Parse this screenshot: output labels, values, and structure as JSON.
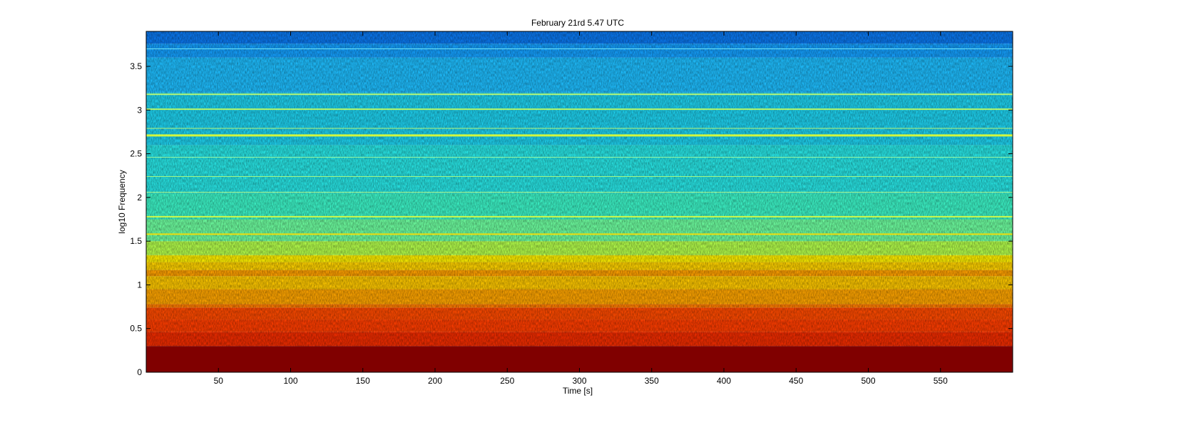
{
  "chart_data": {
    "type": "heatmap",
    "title": "February 21rd 5.47 UTC",
    "xlabel": "Time [s]",
    "ylabel": "log10 Frequency",
    "xlim": [
      0,
      600
    ],
    "ylim": [
      0,
      3.9
    ],
    "x_ticks": [
      {
        "value": 50,
        "label": "50"
      },
      {
        "value": 100,
        "label": "100"
      },
      {
        "value": 150,
        "label": "150"
      },
      {
        "value": 200,
        "label": "200"
      },
      {
        "value": 250,
        "label": "250"
      },
      {
        "value": 300,
        "label": "300"
      },
      {
        "value": 350,
        "label": "350"
      },
      {
        "value": 400,
        "label": "400"
      },
      {
        "value": 450,
        "label": "450"
      },
      {
        "value": 500,
        "label": "500"
      },
      {
        "value": 550,
        "label": "550"
      }
    ],
    "y_ticks": [
      {
        "value": 0,
        "label": "0"
      },
      {
        "value": 0.5,
        "label": "0.5"
      },
      {
        "value": 1,
        "label": "1"
      },
      {
        "value": 1.5,
        "label": "1.5"
      },
      {
        "value": 2,
        "label": "2"
      },
      {
        "value": 2.5,
        "label": "2.5"
      },
      {
        "value": 3,
        "label": "3"
      },
      {
        "value": 3.5,
        "label": "3.5"
      }
    ],
    "colormap": "jet",
    "grid": false,
    "bands": [
      {
        "y0": 0.0,
        "y1": 0.3,
        "color": "#800000"
      },
      {
        "y0": 0.3,
        "y1": 0.46,
        "color": "#f02c00"
      },
      {
        "y0": 0.46,
        "y1": 0.6,
        "color": "#ff3d00"
      },
      {
        "y0": 0.6,
        "y1": 0.74,
        "color": "#ff4a00"
      },
      {
        "y0": 0.74,
        "y1": 0.78,
        "color": "#ff7d00"
      },
      {
        "y0": 0.78,
        "y1": 0.95,
        "color": "#ffa500"
      },
      {
        "y0": 0.95,
        "y1": 1.1,
        "color": "#ffc800"
      },
      {
        "y0": 1.1,
        "y1": 1.17,
        "color": "#ffa000"
      },
      {
        "y0": 1.17,
        "y1": 1.26,
        "color": "#ffd200"
      },
      {
        "y0": 1.26,
        "y1": 1.34,
        "color": "#fff000"
      },
      {
        "y0": 1.34,
        "y1": 1.5,
        "color": "#b4ff4b"
      },
      {
        "y0": 1.5,
        "y1": 1.75,
        "color": "#6effa0"
      },
      {
        "y0": 1.75,
        "y1": 2.05,
        "color": "#3cf5c8"
      },
      {
        "y0": 2.05,
        "y1": 2.6,
        "color": "#28e6e6"
      },
      {
        "y0": 2.6,
        "y1": 3.2,
        "color": "#1ed2f0"
      },
      {
        "y0": 3.2,
        "y1": 3.6,
        "color": "#1ebeff"
      },
      {
        "y0": 3.6,
        "y1": 3.76,
        "color": "#14a0ff"
      },
      {
        "y0": 3.76,
        "y1": 3.9,
        "color": "#0a78f0"
      }
    ],
    "lines": [
      {
        "y": 1.58,
        "color": "#ffe000",
        "width": 2
      },
      {
        "y": 1.78,
        "color": "#e0ff40",
        "width": 2
      },
      {
        "y": 2.06,
        "color": "#b0ff80",
        "width": 1
      },
      {
        "y": 2.24,
        "color": "#b0ff80",
        "width": 1
      },
      {
        "y": 2.46,
        "color": "#a0ffa0",
        "width": 1
      },
      {
        "y": 2.71,
        "color": "#e6ff30",
        "width": 3
      },
      {
        "y": 2.79,
        "color": "#c8ff70",
        "width": 1
      },
      {
        "y": 3.01,
        "color": "#c8ff60",
        "width": 2
      },
      {
        "y": 3.18,
        "color": "#c8ff70",
        "width": 2
      },
      {
        "y": 3.7,
        "color": "#78f0ff",
        "width": 1
      }
    ]
  }
}
